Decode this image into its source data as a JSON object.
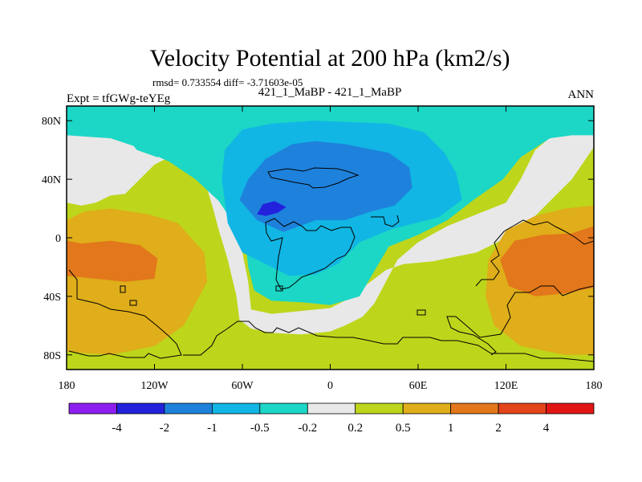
{
  "chart_data": {
    "type": "heatmap",
    "title": "Velocity Potential at 200 hPa (km2/s)",
    "stats": "rmsd= 0.733554 diff= -3.71603e-05",
    "left_label": "Expt = tfGWg-teYEg",
    "center_label": "421_1_MaBP - 421_1_MaBP",
    "right_label": "ANN",
    "x_axis": {
      "range": [
        -180,
        180
      ],
      "ticks": [
        -180,
        -120,
        -60,
        0,
        60,
        120,
        180
      ],
      "tick_labels": [
        "180",
        "120W",
        "60W",
        "0",
        "60E",
        "120E",
        "180"
      ]
    },
    "y_axis": {
      "range": [
        -90,
        90
      ],
      "ticks": [
        80,
        40,
        0,
        -40,
        -80
      ],
      "tick_labels": [
        "80N",
        "40N",
        "0",
        "40S",
        "80S"
      ]
    },
    "colorbar": {
      "boundaries": [
        "-4",
        "-2",
        "-1",
        "-0.5",
        "-0.2",
        "0.2",
        "0.5",
        "1",
        "2",
        "4"
      ],
      "colors": [
        "#8c1ff0",
        "#2222dd",
        "#1e82dc",
        "#11b6e4",
        "#1cd6c6",
        "#e8e8e8",
        "#bdd61b",
        "#dfae1a",
        "#e2771b",
        "#e4441b",
        "#e21515"
      ]
    },
    "regions": [
      {
        "name": "background-moderate-positive",
        "level": "0.2 to 0.5",
        "color": "#bdd61b",
        "points": [
          [
            -180,
            90
          ],
          [
            180,
            90
          ],
          [
            180,
            -90
          ],
          [
            -180,
            -90
          ]
        ]
      },
      {
        "name": "neutral-band",
        "level": "-0.2 to 0.2",
        "color": "#e8e8e8",
        "points": [
          [
            -180,
            72
          ],
          [
            -150,
            74
          ],
          [
            -120,
            72
          ],
          [
            -100,
            60
          ],
          [
            -86,
            40
          ],
          [
            -80,
            20
          ],
          [
            -76,
            5
          ],
          [
            -70,
            -15
          ],
          [
            -64,
            -40
          ],
          [
            -62,
            -56
          ],
          [
            -54,
            -62
          ],
          [
            -40,
            -65
          ],
          [
            -20,
            -66
          ],
          [
            0,
            -64
          ],
          [
            10,
            -60
          ],
          [
            22,
            -54
          ],
          [
            30,
            -45
          ],
          [
            38,
            -30
          ],
          [
            46,
            -15
          ],
          [
            60,
            -3
          ],
          [
            80,
            8
          ],
          [
            100,
            16
          ],
          [
            120,
            24
          ],
          [
            130,
            40
          ],
          [
            140,
            60
          ],
          [
            152,
            70
          ],
          [
            180,
            72
          ],
          [
            180,
            62
          ],
          [
            165,
            40
          ],
          [
            155,
            30
          ],
          [
            140,
            15
          ],
          [
            120,
            0
          ],
          [
            100,
            -10
          ],
          [
            70,
            -16
          ],
          [
            50,
            -18
          ],
          [
            38,
            -22
          ],
          [
            25,
            -32
          ],
          [
            12,
            -42
          ],
          [
            0,
            -48
          ],
          [
            -20,
            -50
          ],
          [
            -40,
            -52
          ],
          [
            -54,
            -49
          ],
          [
            -56,
            -30
          ],
          [
            -62,
            0
          ],
          [
            -66,
            15
          ],
          [
            -75,
            30
          ],
          [
            -88,
            50
          ],
          [
            -104,
            58
          ],
          [
            -120,
            50
          ],
          [
            -140,
            30
          ],
          [
            -158,
            28
          ],
          [
            -180,
            28
          ]
        ]
      },
      {
        "name": "neutral-patch-west-pacific",
        "level": "-0.2 to 0.2",
        "color": "#e8e8e8",
        "points": [
          [
            -180,
            24
          ],
          [
            -170,
            22
          ],
          [
            -160,
            24
          ],
          [
            -150,
            29
          ],
          [
            -160,
            35
          ],
          [
            -180,
            35
          ]
        ]
      },
      {
        "name": "positive-1-2-southwest-pacific",
        "level": "0.5 to 1",
        "color": "#dfae1a",
        "points": [
          [
            -180,
            12
          ],
          [
            -168,
            18
          ],
          [
            -150,
            20
          ],
          [
            -124,
            16
          ],
          [
            -104,
            10
          ],
          [
            -86,
            -10
          ],
          [
            -84,
            -30
          ],
          [
            -100,
            -60
          ],
          [
            -120,
            -74
          ],
          [
            -150,
            -80
          ],
          [
            -180,
            -78
          ]
        ]
      },
      {
        "name": "positive-1-2-east",
        "level": "0.5 to 1",
        "color": "#dfae1a",
        "points": [
          [
            180,
            22
          ],
          [
            160,
            20
          ],
          [
            140,
            15
          ],
          [
            120,
            5
          ],
          [
            108,
            -15
          ],
          [
            106,
            -40
          ],
          [
            112,
            -60
          ],
          [
            130,
            -74
          ],
          [
            160,
            -80
          ],
          [
            180,
            -80
          ]
        ]
      },
      {
        "name": "strong-positive-west",
        "level": "1 to 2",
        "color": "#e2771b",
        "points": [
          [
            -180,
            -2
          ],
          [
            -170,
            -4
          ],
          [
            -150,
            -2
          ],
          [
            -130,
            -5
          ],
          [
            -118,
            -14
          ],
          [
            -120,
            -28
          ],
          [
            -140,
            -30
          ],
          [
            -160,
            -28
          ],
          [
            -180,
            -26
          ]
        ]
      },
      {
        "name": "strong-positive-east",
        "level": "1 to 2",
        "color": "#e2771b",
        "points": [
          [
            180,
            8
          ],
          [
            165,
            3
          ],
          [
            145,
            2
          ],
          [
            126,
            -2
          ],
          [
            116,
            -15
          ],
          [
            122,
            -33
          ],
          [
            140,
            -40
          ],
          [
            160,
            -38
          ],
          [
            180,
            -34
          ]
        ]
      },
      {
        "name": "weak-negative-north",
        "level": "-0.5 to -0.2",
        "color": "#1cd6c6",
        "points": [
          [
            -180,
            90
          ],
          [
            180,
            90
          ],
          [
            180,
            70
          ],
          [
            165,
            70
          ],
          [
            150,
            68
          ],
          [
            130,
            55
          ],
          [
            118,
            40
          ],
          [
            98,
            26
          ],
          [
            80,
            12
          ],
          [
            60,
            2
          ],
          [
            40,
            -6
          ],
          [
            20,
            -40
          ],
          [
            0,
            -46
          ],
          [
            -20,
            -44
          ],
          [
            -40,
            -43
          ],
          [
            -52,
            -36
          ],
          [
            -56,
            -20
          ],
          [
            -58,
            -2
          ],
          [
            -66,
            10
          ],
          [
            -76,
            25
          ],
          [
            -92,
            40
          ],
          [
            -110,
            52
          ],
          [
            -132,
            62
          ],
          [
            -150,
            68
          ],
          [
            -180,
            70
          ]
        ]
      },
      {
        "name": "weak-negative-patch-north-atlantic",
        "level": "-0.5 to -0.2",
        "color": "#1cd6c6",
        "points": [
          [
            -140,
            70
          ],
          [
            -115,
            72
          ],
          [
            -108,
            62
          ],
          [
            -118,
            55
          ],
          [
            -132,
            60
          ]
        ]
      },
      {
        "name": "moderate-negative",
        "level": "-1 to -0.5",
        "color": "#11b6e4",
        "points": [
          [
            -28,
            -26
          ],
          [
            -10,
            -25
          ],
          [
            5,
            -18
          ],
          [
            20,
            -3
          ],
          [
            42,
            6
          ],
          [
            74,
            14
          ],
          [
            90,
            26
          ],
          [
            86,
            44
          ],
          [
            78,
            58
          ],
          [
            64,
            72
          ],
          [
            40,
            78
          ],
          [
            -10,
            80
          ],
          [
            -40,
            78
          ],
          [
            -60,
            74
          ],
          [
            -72,
            60
          ],
          [
            -74,
            40
          ],
          [
            -70,
            10
          ],
          [
            -60,
            -10
          ]
        ]
      },
      {
        "name": "strong-negative",
        "level": "-2 to -1",
        "color": "#1e82dc",
        "points": [
          [
            -62,
            26
          ],
          [
            -50,
            12
          ],
          [
            -32,
            4
          ],
          [
            -10,
            12
          ],
          [
            10,
            12
          ],
          [
            28,
            18
          ],
          [
            44,
            22
          ],
          [
            56,
            34
          ],
          [
            54,
            48
          ],
          [
            40,
            58
          ],
          [
            10,
            64
          ],
          [
            -10,
            66
          ],
          [
            -26,
            64
          ],
          [
            -44,
            54
          ],
          [
            -56,
            40
          ]
        ]
      },
      {
        "name": "very-strong-negative",
        "level": "-4 to -2",
        "color": "#2222dd",
        "points": [
          [
            -50,
            16
          ],
          [
            -46,
            23
          ],
          [
            -38,
            25
          ],
          [
            -30,
            21
          ],
          [
            -36,
            17
          ],
          [
            -44,
            15
          ]
        ]
      }
    ]
  }
}
